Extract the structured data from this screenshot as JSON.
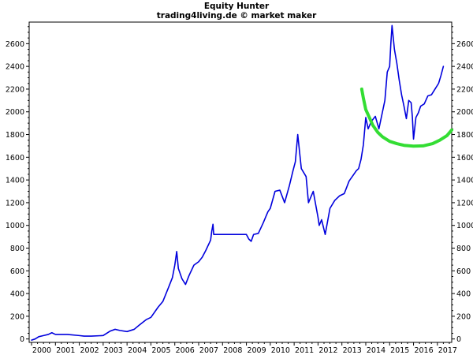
{
  "chart_data": {
    "type": "line",
    "title": "Equity Hunter",
    "subtitle": "trading4living.de © market maker",
    "xlabel": "",
    "ylabel": "",
    "xlim": [
      1999.9,
      2017.6
    ],
    "ylim": [
      -30,
      2790
    ],
    "x_ticks": [
      2000,
      2001,
      2002,
      2003,
      2004,
      2005,
      2006,
      2007,
      2008,
      2009,
      2010,
      2011,
      2012,
      2013,
      2014,
      2015,
      2016,
      2017
    ],
    "y_ticks": [
      0,
      200,
      400,
      600,
      800,
      1000,
      1200,
      1400,
      1600,
      1800,
      2000,
      2200,
      2400,
      2600
    ],
    "grid": false,
    "legend": "none",
    "y_axis_both_sides": true,
    "series": [
      {
        "color": "#0000dd",
        "x": [
          2000.0,
          2000.15,
          2000.3,
          2000.5,
          2000.7,
          2000.85,
          2001.0,
          2001.5,
          2002.0,
          2002.2,
          2002.5,
          2003.0,
          2003.3,
          2003.5,
          2003.7,
          2004.0,
          2004.3,
          2004.5,
          2004.8,
          2005.0,
          2005.3,
          2005.5,
          2005.75,
          2005.9,
          2006.0,
          2006.08,
          2006.15,
          2006.3,
          2006.45,
          2006.6,
          2006.8,
          2007.0,
          2007.15,
          2007.3,
          2007.5,
          2007.55,
          2007.6,
          2007.63,
          2008.0,
          2008.5,
          2009.0,
          2009.1,
          2009.2,
          2009.3,
          2009.5,
          2009.7,
          2009.9,
          2010.0,
          2010.2,
          2010.4,
          2010.6,
          2010.8,
          2010.95,
          2011.05,
          2011.15,
          2011.3,
          2011.5,
          2011.6,
          2011.7,
          2011.8,
          2012.0,
          2012.05,
          2012.15,
          2012.3,
          2012.5,
          2012.7,
          2012.9,
          2013.1,
          2013.3,
          2013.5,
          2013.6,
          2013.7,
          2013.8,
          2013.9,
          2014.0,
          2014.1,
          2014.2,
          2014.25,
          2014.4,
          2014.55,
          2014.7,
          2014.8,
          2014.9,
          2015.0,
          2015.05,
          2015.1,
          2015.2,
          2015.3,
          2015.4,
          2015.5,
          2015.6,
          2015.7,
          2015.8,
          2015.9,
          2015.95,
          2016.0,
          2016.1,
          2016.2,
          2016.3,
          2016.45,
          2016.6,
          2016.75,
          2016.9,
          2017.05,
          2017.15,
          2017.25
        ],
        "y": [
          -10,
          0,
          20,
          30,
          40,
          55,
          40,
          40,
          30,
          25,
          25,
          30,
          70,
          85,
          75,
          65,
          85,
          120,
          170,
          190,
          280,
          330,
          460,
          540,
          650,
          770,
          620,
          530,
          480,
          560,
          650,
          680,
          720,
          780,
          870,
          950,
          1010,
          920,
          920,
          920,
          920,
          880,
          860,
          920,
          930,
          1020,
          1120,
          1150,
          1300,
          1310,
          1200,
          1350,
          1480,
          1560,
          1800,
          1500,
          1430,
          1200,
          1250,
          1300,
          1070,
          1000,
          1050,
          920,
          1150,
          1220,
          1260,
          1280,
          1390,
          1450,
          1480,
          1500,
          1580,
          1710,
          1950,
          1850,
          1900,
          1920,
          1960,
          1850,
          2000,
          2100,
          2350,
          2400,
          2600,
          2760,
          2550,
          2430,
          2280,
          2150,
          2050,
          1940,
          2100,
          2080,
          1960,
          1760,
          1950,
          1990,
          2050,
          2070,
          2140,
          2150,
          2200,
          2250,
          2320,
          2400
        ]
      },
      {
        "color": "#33dd33",
        "x": [
          2013.83,
          2013.9,
          2014.0,
          2014.15,
          2014.3,
          2014.5,
          2014.7,
          2015.0,
          2015.3,
          2015.6,
          2016.0,
          2016.4,
          2016.8,
          2017.1,
          2017.4,
          2017.6
        ],
        "y": [
          2200,
          2120,
          2020,
          1950,
          1880,
          1820,
          1780,
          1740,
          1720,
          1705,
          1698,
          1700,
          1720,
          1750,
          1790,
          1840
        ]
      }
    ]
  }
}
